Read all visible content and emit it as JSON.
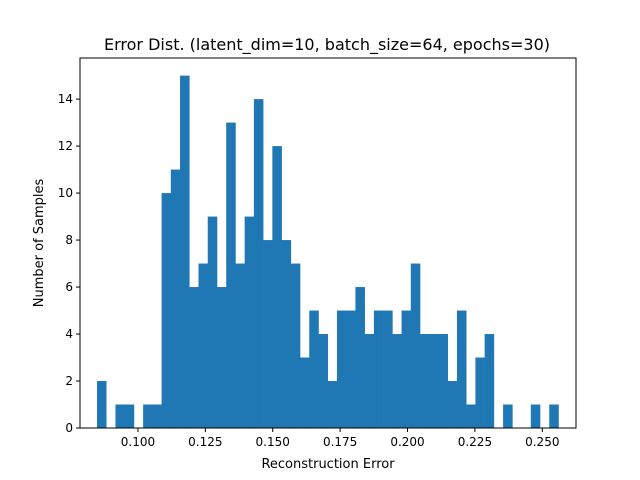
{
  "chart_data": {
    "type": "bar",
    "title": "Error Dist. (latent_dim=10, batch_size=64, epochs=30)",
    "xlabel": "Reconstruction Error",
    "ylabel": "Number of Samples",
    "xlim": [
      0.0785,
      0.2625
    ],
    "ylim": [
      0,
      15.75
    ],
    "bin_width": 0.003424,
    "bin_start": 0.0848,
    "counts": [
      2,
      0,
      1,
      1,
      0,
      1,
      1,
      10,
      11,
      15,
      6,
      7,
      9,
      6,
      13,
      7,
      9,
      14,
      8,
      12,
      8,
      7,
      3,
      5,
      4,
      2,
      5,
      5,
      6,
      4,
      5,
      5,
      4,
      5,
      7,
      4,
      4,
      4,
      2,
      5,
      1,
      3,
      4,
      0,
      1,
      0,
      0,
      1,
      0,
      1
    ],
    "xticks": [
      0.1,
      0.125,
      0.15,
      0.175,
      0.2,
      0.225,
      0.25
    ],
    "xtick_labels": [
      "0.100",
      "0.125",
      "0.150",
      "0.175",
      "0.200",
      "0.225",
      "0.250"
    ],
    "yticks": [
      0,
      2,
      4,
      6,
      8,
      10,
      12,
      14
    ],
    "ytick_labels": [
      "0",
      "2",
      "4",
      "6",
      "8",
      "10",
      "12",
      "14"
    ],
    "bar_color": "#1f77b4",
    "grid": false,
    "legend": "none"
  }
}
